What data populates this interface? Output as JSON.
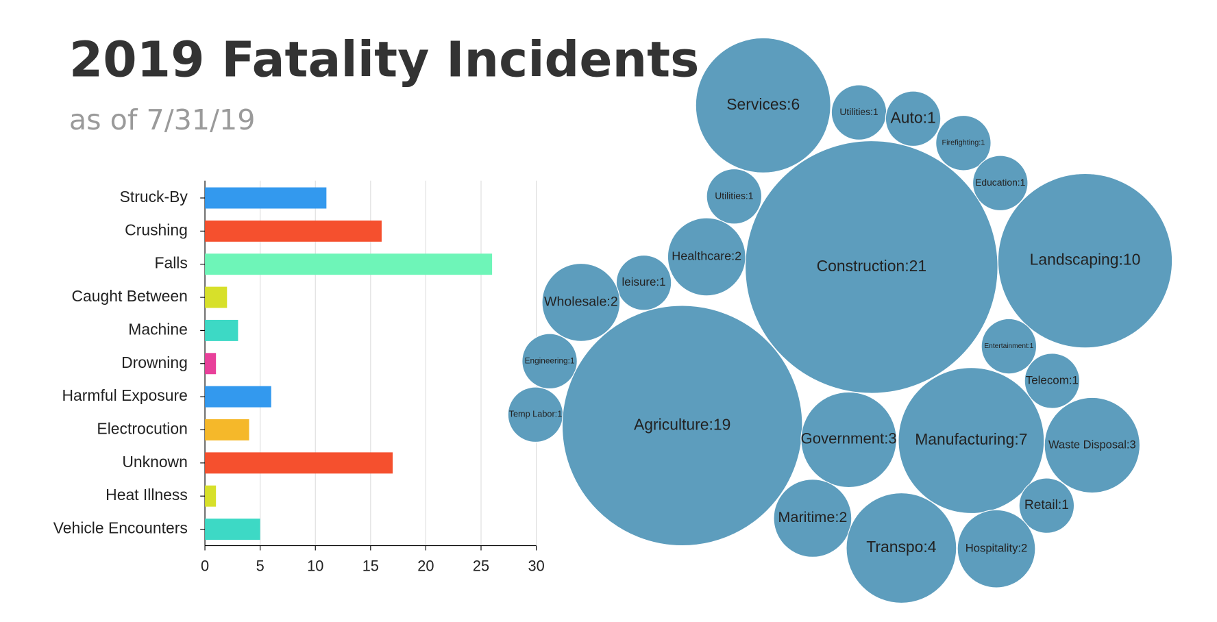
{
  "chart_data": [
    {
      "type": "hbar",
      "title": "2019 Fatality Incidents",
      "subtitle": "as of 7/31/19",
      "categories": [
        "Struck-By",
        "Crushing",
        "Falls",
        "Caught Between",
        "Machine",
        "Drowning",
        "Harmful Exposure",
        "Electrocution",
        "Unknown",
        "Heat Illness",
        "Vehicle Encounters"
      ],
      "values": [
        11,
        16,
        26,
        2,
        3,
        1,
        6,
        4,
        17,
        1,
        5
      ],
      "colors": [
        "#3399ee",
        "#f5502e",
        "#6ef5b8",
        "#d7e02a",
        "#3dd9c5",
        "#e8409a",
        "#3399ee",
        "#f5b82a",
        "#f5502e",
        "#d7e02a",
        "#3dd9c5"
      ],
      "xlim": [
        0,
        30
      ],
      "xticks": [
        0,
        5,
        10,
        15,
        20,
        25,
        30
      ],
      "grid": true
    },
    {
      "type": "bubble",
      "color": "#5d9dbd",
      "values": [
        6,
        1,
        1,
        1,
        1,
        1,
        21,
        10,
        2,
        1,
        2,
        1,
        1,
        1,
        1,
        19,
        3,
        7,
        3,
        1,
        2,
        4,
        2
      ],
      "value_labels": [
        "Services:6",
        "Utilities:1",
        "Auto:1",
        "Firefighting:1",
        "Education:1",
        "Utilities:1",
        "Construction:21",
        "Landscaping:10",
        "Healthcare:2",
        "leisure:1",
        "Wholesale:2",
        "Entertainment:1",
        "Engineering:1",
        "Telecom:1",
        "Temp Labor:1",
        "Agriculture:19",
        "Government:3",
        "Manufacturing:7",
        "Waste Disposal:3",
        "Retail:1",
        "Maritime:2",
        "Transpo:4",
        "Hospitality:2"
      ]
    }
  ]
}
